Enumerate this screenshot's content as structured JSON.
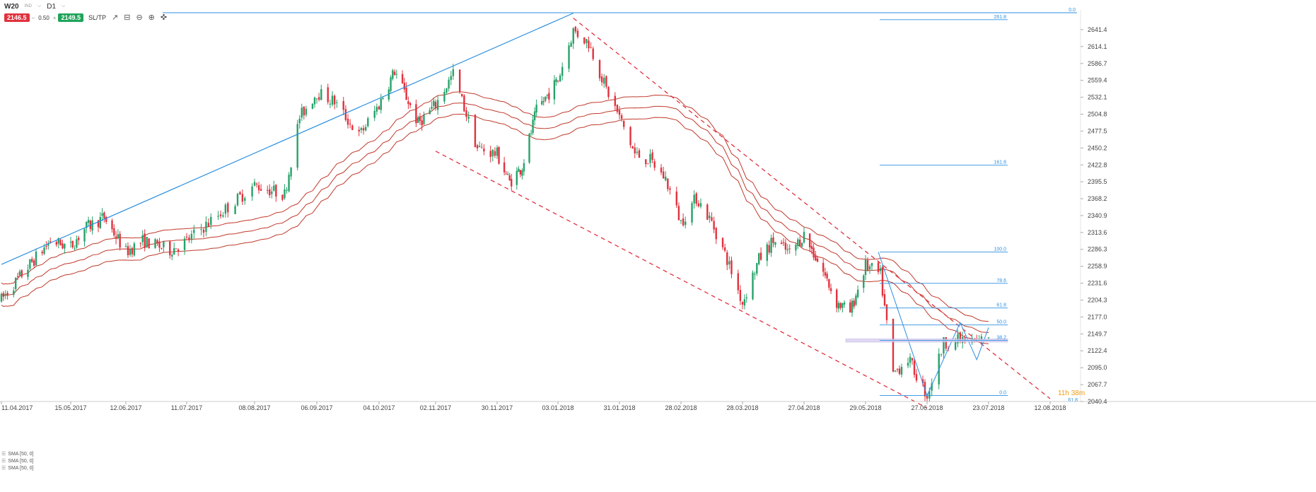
{
  "toolbar": {
    "symbol": "W20",
    "symbol_sub": "IND",
    "timeframe": "D1",
    "sell_price": "2146.5",
    "volume": "0.50",
    "buy_price": "2149.5",
    "sltp_label": "SL/TP"
  },
  "indicators": [
    "SMA [50, 0]",
    "SMA [50, 0]",
    "SMA [50, 0]"
  ],
  "timer": {
    "hours": "11h",
    "minutes": "38m"
  },
  "colors": {
    "up": "#26a269",
    "down": "#e0323e",
    "trend": "#2b8fe0",
    "channel": "#e0323e",
    "envelope": "#c0392b",
    "fib": "#2b8fe0"
  },
  "chart_data": {
    "type": "candlestick",
    "title": "W20 D1",
    "ylim": [
      2040.4,
      2668.7
    ],
    "y_ticks": [
      "2641.4",
      "2614.1",
      "2586.7",
      "2559.4",
      "2532.1",
      "2504.8",
      "2477.5",
      "2450.2",
      "2422.8",
      "2395.5",
      "2368.2",
      "2340.9",
      "2313.6",
      "2286.3",
      "2258.9",
      "2231.6",
      "2204.3",
      "2177.0",
      "2149.7",
      "2122.4",
      "2095.0",
      "2067.7",
      "2040.4"
    ],
    "x_ticks": [
      "11.04.2017",
      "15.05.2017",
      "12.06.2017",
      "11.07.2017",
      "08.08.2017",
      "06.09.2017",
      "04.10.2017",
      "02.11.2017",
      "30.11.2017",
      "03.01.2018",
      "31.01.2018",
      "28.02.2018",
      "28.03.2018",
      "27.04.2018",
      "29.05.2018",
      "27.06.2018",
      "23.07.2018",
      "12.08.2018"
    ],
    "price_path": [
      [
        "11.04.2017",
        2205
      ],
      [
        "25.04.2017",
        2262
      ],
      [
        "05.05.2017",
        2300
      ],
      [
        "15.05.2017",
        2290
      ],
      [
        "22.05.2017",
        2320
      ],
      [
        "01.06.2017",
        2338
      ],
      [
        "12.06.2017",
        2282
      ],
      [
        "20.06.2017",
        2300
      ],
      [
        "03.07.2017",
        2285
      ],
      [
        "11.07.2017",
        2300
      ],
      [
        "25.07.2017",
        2345
      ],
      [
        "08.08.2017",
        2390
      ],
      [
        "22.08.2017",
        2375
      ],
      [
        "29.08.2017",
        2500
      ],
      [
        "06.09.2017",
        2540
      ],
      [
        "14.09.2017",
        2525
      ],
      [
        "25.09.2017",
        2470
      ],
      [
        "04.10.2017",
        2520
      ],
      [
        "12.10.2017",
        2575
      ],
      [
        "24.10.2017",
        2490
      ],
      [
        "02.11.2017",
        2520
      ],
      [
        "10.11.2017",
        2570
      ],
      [
        "21.11.2017",
        2450
      ],
      [
        "30.11.2017",
        2440
      ],
      [
        "07.12.2017",
        2395
      ],
      [
        "14.12.2017",
        2420
      ],
      [
        "22.12.2017",
        2510
      ],
      [
        "03.01.2018",
        2560
      ],
      [
        "10.01.2018",
        2640
      ],
      [
        "17.01.2018",
        2620
      ],
      [
        "25.01.2018",
        2545
      ],
      [
        "31.01.2018",
        2500
      ],
      [
        "07.02.2018",
        2440
      ],
      [
        "14.02.2018",
        2430
      ],
      [
        "21.02.2018",
        2400
      ],
      [
        "28.02.2018",
        2330
      ],
      [
        "07.03.2018",
        2370
      ],
      [
        "14.03.2018",
        2330
      ],
      [
        "21.03.2018",
        2270
      ],
      [
        "28.03.2018",
        2200
      ],
      [
        "05.04.2018",
        2270
      ],
      [
        "12.04.2018",
        2300
      ],
      [
        "20.04.2018",
        2280
      ],
      [
        "27.04.2018",
        2310
      ],
      [
        "07.05.2018",
        2250
      ],
      [
        "14.05.2018",
        2200
      ],
      [
        "21.05.2018",
        2185
      ],
      [
        "29.05.2018",
        2260
      ],
      [
        "05.06.2018",
        2245
      ],
      [
        "11.06.2018",
        2085
      ],
      [
        "18.06.2018",
        2110
      ],
      [
        "27.06.2018",
        2050
      ],
      [
        "04.07.2018",
        2135
      ],
      [
        "11.07.2018",
        2140
      ],
      [
        "18.07.2018",
        2135
      ],
      [
        "23.07.2018",
        2148
      ]
    ],
    "fibonacci_levels": [
      {
        "label": "261.8",
        "value": 2657.5
      },
      {
        "label": "161.8",
        "value": 2422.3
      },
      {
        "label": "100.0",
        "value": 2282.1
      },
      {
        "label": "78.6",
        "value": 2231.4
      },
      {
        "label": "61.8",
        "value": 2191.6
      },
      {
        "label": "50.0",
        "value": 2164.1
      },
      {
        "label": "38.2",
        "value": 2139.1
      },
      {
        "label": "0.0",
        "value": 2050.0
      },
      {
        "label": "0.0",
        "value": 2668.7
      }
    ],
    "fib_extra_label": "61.8",
    "trendline": {
      "from": [
        "11.04.2017",
        2262
      ],
      "to": [
        "10.01.2018",
        2668
      ]
    },
    "channel_upper": {
      "from": [
        "10.01.2018",
        2660
      ],
      "to": [
        "12.08.2018",
        2045
      ]
    },
    "channel_lower": {
      "from": [
        "02.11.2017",
        2445
      ],
      "to": [
        "27.06.2018",
        2030
      ]
    },
    "envelope": {
      "name": "SMA [50, 0]",
      "bands": 3
    }
  }
}
